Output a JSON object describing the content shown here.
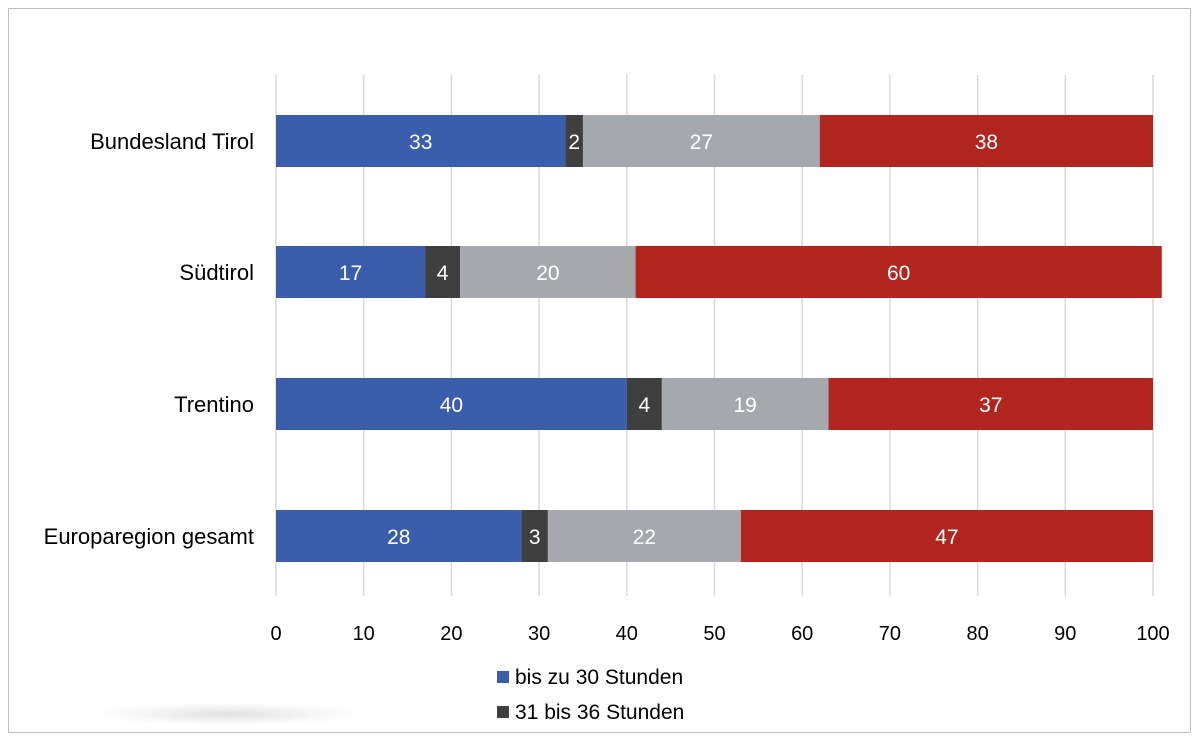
{
  "chart_data": {
    "type": "bar",
    "orientation": "horizontal",
    "stacked": true,
    "categories": [
      "Bundesland Tirol",
      "Südtirol",
      "Trentino",
      "Europaregion gesamt"
    ],
    "series": [
      {
        "name": "bis zu 30 Stunden",
        "values": [
          33,
          17,
          40,
          28
        ],
        "color": "#3a5eab"
      },
      {
        "name": "31 bis 36 Stunden",
        "values": [
          2,
          4,
          4,
          3
        ],
        "color": "#3f3f3f"
      },
      {
        "values": [
          27,
          20,
          19,
          22
        ],
        "color": "#a5a9ad"
      },
      {
        "values": [
          38,
          60,
          37,
          47
        ],
        "color": "#b0261e"
      }
    ],
    "xlim": [
      0,
      100
    ],
    "xticks": [
      0,
      10,
      20,
      30,
      40,
      50,
      60,
      70,
      80,
      90,
      100
    ],
    "grid": true,
    "data_labels": true,
    "legend_position": "bottom"
  }
}
